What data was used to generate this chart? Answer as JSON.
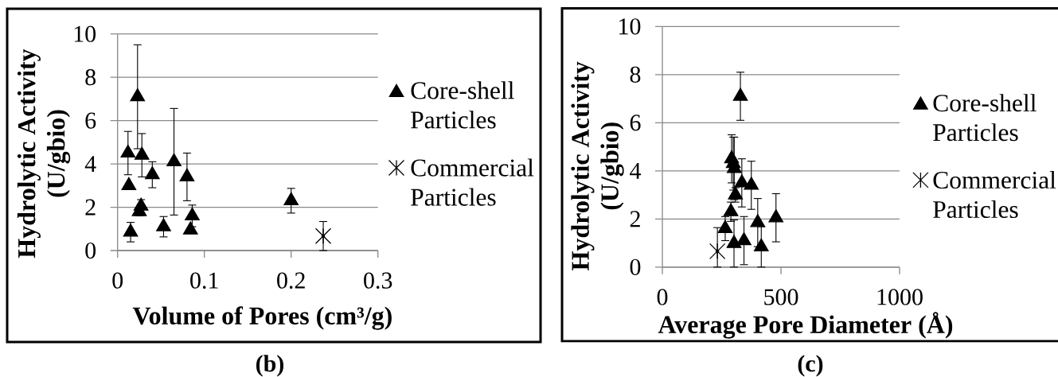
{
  "chart_data": [
    {
      "type": "scatter",
      "xlabel": "Volume of Pores (cm³/g)",
      "ylabel": "Hydrolytic Activity (U/gbio)",
      "annotations": [
        "(b)"
      ],
      "series": [
        {
          "name": "Core-shell Particles",
          "color": "#000000",
          "marker": "triangle",
          "x": [
            0.012,
            0.023,
            0.028,
            0.04,
            0.013,
            0.027,
            0.025,
            0.015,
            0.053,
            0.065,
            0.08,
            0.086,
            0.084,
            0.2
          ],
          "values": [
            4.5,
            7.1,
            4.4,
            3.5,
            3.0,
            2.05,
            1.8,
            0.85,
            1.1,
            4.1,
            3.4,
            1.6,
            0.95,
            2.3
          ],
          "errors": [
            1.0,
            2.4,
            1.0,
            0.6,
            null,
            0.3,
            0.2,
            0.45,
            0.47,
            2.46,
            1.1,
            0.5,
            null,
            0.57
          ]
        },
        {
          "name": "Commercial Particles",
          "color": "#000000",
          "marker": "star",
          "x": [
            0.237
          ],
          "values": [
            0.67
          ],
          "errors": [
            0.67
          ]
        }
      ],
      "xlim": [
        0,
        0.3
      ],
      "xticks": [
        0,
        0.1,
        0.2,
        0.3
      ],
      "ylim": [
        0,
        10
      ],
      "yticks": [
        0,
        2,
        4,
        6,
        8,
        10
      ],
      "grid": "y",
      "legend": "right"
    },
    {
      "type": "scatter",
      "xlabel": "Average Pore Diameter (Å)",
      "ylabel": "Hydrolytic Activity (U/gbio)",
      "annotations": [
        "(c)"
      ],
      "series": [
        {
          "name": "Core-shell Particles",
          "color": "#000000",
          "marker": "triangle",
          "x": [
            329,
            292,
            299,
            303,
            335,
            375,
            308,
            289,
            265,
            402,
            479,
            344,
            302,
            417
          ],
          "values": [
            7.1,
            4.5,
            4.3,
            4.1,
            3.5,
            3.4,
            3.0,
            2.3,
            1.6,
            1.85,
            2.05,
            1.1,
            0.98,
            0.84
          ],
          "errors": [
            1.0,
            1.0,
            1.1,
            1.3,
            1.0,
            1.0,
            0.3,
            0.4,
            0.5,
            1.0,
            1.0,
            1.0,
            0.98,
            0.84
          ]
        },
        {
          "name": "Commercial Particles",
          "color": "#000000",
          "marker": "star",
          "x": [
            232
          ],
          "values": [
            0.66
          ],
          "errors": [
            [
              0,
              1.64
            ]
          ]
        }
      ],
      "xlim": [
        0,
        1000
      ],
      "xticks": [
        0,
        500,
        1000
      ],
      "ylim": [
        0,
        10
      ],
      "yticks": [
        0,
        2,
        4,
        6,
        8,
        10
      ],
      "grid": "y",
      "legend": "right"
    }
  ]
}
